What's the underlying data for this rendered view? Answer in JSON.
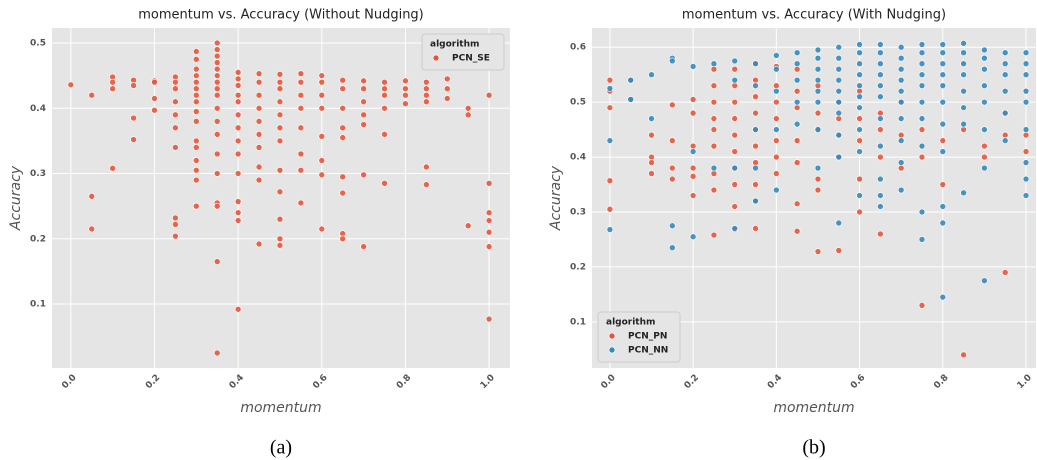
{
  "chart_data": [
    {
      "type": "scatter",
      "title": "momentum vs. Accuracy (Without Nudging)",
      "xlabel": "momentum",
      "ylabel": "Accuracy",
      "caption": "(a)",
      "xlim": [
        -0.045,
        1.05
      ],
      "ylim": [
        0.002,
        0.523
      ],
      "xticks": [
        {
          "value": 0,
          "label": "0.0"
        },
        0.2,
        0.4,
        0.6,
        0.8,
        {
          "value": 1,
          "label": "1.0"
        }
      ],
      "yticks": [
        0.1,
        0.2,
        0.3,
        0.4,
        0.5
      ],
      "grid": true,
      "legend_title": "algorithm",
      "legend_loc": "upper right",
      "series": [
        {
          "name": "PCN_SE",
          "color": "#e5553b",
          "x": [
            0,
            0.05,
            0.05,
            0.05,
            0.1,
            0.1,
            0.1,
            0.1,
            0.15,
            0.15,
            0.15,
            0.15,
            0.2,
            0.2,
            0.2,
            0.2,
            0.25,
            0.25,
            0.25,
            0.25,
            0.25,
            0.25,
            0.25,
            0.25,
            0.25,
            0.25,
            0.3,
            0.3,
            0.3,
            0.3,
            0.3,
            0.3,
            0.3,
            0.3,
            0.3,
            0.3,
            0.3,
            0.3,
            0.3,
            0.3,
            0.3,
            0.3,
            0.35,
            0.35,
            0.35,
            0.35,
            0.35,
            0.35,
            0.35,
            0.35,
            0.35,
            0.35,
            0.35,
            0.35,
            0.35,
            0.35,
            0.35,
            0.35,
            0.35,
            0.35,
            0.4,
            0.4,
            0.4,
            0.4,
            0.4,
            0.4,
            0.4,
            0.4,
            0.4,
            0.4,
            0.4,
            0.4,
            0.4,
            0.4,
            0.45,
            0.45,
            0.45,
            0.45,
            0.45,
            0.45,
            0.45,
            0.45,
            0.45,
            0.45,
            0.5,
            0.5,
            0.5,
            0.5,
            0.5,
            0.5,
            0.5,
            0.5,
            0.5,
            0.5,
            0.5,
            0.5,
            0.55,
            0.55,
            0.55,
            0.55,
            0.55,
            0.55,
            0.55,
            0.55,
            0.6,
            0.6,
            0.6,
            0.6,
            0.6,
            0.6,
            0.6,
            0.6,
            0.65,
            0.65,
            0.65,
            0.65,
            0.65,
            0.65,
            0.65,
            0.65,
            0.65,
            0.7,
            0.7,
            0.7,
            0.7,
            0.7,
            0.7,
            0.7,
            0.75,
            0.75,
            0.75,
            0.75,
            0.75,
            0.75,
            0.8,
            0.8,
            0.8,
            0.8,
            0.85,
            0.85,
            0.85,
            0.85,
            0.85,
            0.85,
            0.9,
            0.9,
            0.9,
            0.95,
            0.95,
            0.95,
            1,
            1,
            1,
            1,
            1,
            1,
            1
          ],
          "y": [
            0.436,
            0.42,
            0.265,
            0.215,
            0.448,
            0.44,
            0.43,
            0.308,
            0.443,
            0.435,
            0.385,
            0.352,
            0.442,
            0.44,
            0.415,
            0.397,
            0.448,
            0.44,
            0.43,
            0.41,
            0.39,
            0.37,
            0.34,
            0.232,
            0.222,
            0.204,
            0.487,
            0.475,
            0.46,
            0.45,
            0.44,
            0.43,
            0.42,
            0.41,
            0.395,
            0.38,
            0.35,
            0.34,
            0.32,
            0.305,
            0.29,
            0.25,
            0.5,
            0.49,
            0.48,
            0.47,
            0.46,
            0.45,
            0.44,
            0.43,
            0.42,
            0.4,
            0.38,
            0.36,
            0.33,
            0.3,
            0.255,
            0.25,
            0.165,
            0.025,
            0.455,
            0.445,
            0.435,
            0.42,
            0.41,
            0.39,
            0.37,
            0.35,
            0.33,
            0.3,
            0.257,
            0.24,
            0.228,
            0.092,
            0.453,
            0.44,
            0.42,
            0.4,
            0.38,
            0.36,
            0.34,
            0.31,
            0.29,
            0.192,
            0.452,
            0.44,
            0.43,
            0.41,
            0.39,
            0.37,
            0.35,
            0.305,
            0.272,
            0.23,
            0.2,
            0.19,
            0.453,
            0.44,
            0.42,
            0.4,
            0.37,
            0.33,
            0.305,
            0.255,
            0.45,
            0.44,
            0.42,
            0.4,
            0.357,
            0.32,
            0.298,
            0.215,
            0.443,
            0.43,
            0.4,
            0.37,
            0.355,
            0.295,
            0.27,
            0.208,
            0.2,
            0.442,
            0.43,
            0.41,
            0.39,
            0.375,
            0.298,
            0.188,
            0.44,
            0.43,
            0.42,
            0.4,
            0.36,
            0.285,
            0.442,
            0.43,
            0.42,
            0.407,
            0.44,
            0.43,
            0.42,
            0.41,
            0.31,
            0.283,
            0.445,
            0.43,
            0.415,
            0.4,
            0.39,
            0.22,
            0.42,
            0.285,
            0.24,
            0.228,
            0.21,
            0.188,
            0.077
          ]
        }
      ]
    },
    {
      "type": "scatter",
      "title": "momentum vs. Accuracy (With Nudging)",
      "xlabel": "momentum",
      "ylabel": "Accuracy",
      "caption": "(b)",
      "xlim": [
        -0.043,
        1.024
      ],
      "ylim": [
        0.016,
        0.635
      ],
      "xticks": [
        {
          "value": 0,
          "label": "0.0"
        },
        0.2,
        0.4,
        0.6,
        0.8,
        {
          "value": 1,
          "label": "1.0"
        }
      ],
      "yticks": [
        0.1,
        0.2,
        0.3,
        0.4,
        0.5,
        0.6
      ],
      "grid": true,
      "legend_title": "algorithm",
      "legend_loc": "lower left",
      "series": [
        {
          "name": "PCN_PN",
          "color": "#e5553b",
          "x": [
            0,
            0,
            0,
            0,
            0,
            0.05,
            0.05,
            0.1,
            0.1,
            0.1,
            0.1,
            0.15,
            0.15,
            0.15,
            0.15,
            0.2,
            0.2,
            0.2,
            0.2,
            0.2,
            0.2,
            0.25,
            0.25,
            0.25,
            0.25,
            0.25,
            0.25,
            0.25,
            0.25,
            0.25,
            0.3,
            0.3,
            0.3,
            0.3,
            0.3,
            0.3,
            0.3,
            0.3,
            0.3,
            0.3,
            0.35,
            0.35,
            0.35,
            0.35,
            0.35,
            0.35,
            0.35,
            0.35,
            0.35,
            0.35,
            0.4,
            0.4,
            0.4,
            0.4,
            0.4,
            0.4,
            0.4,
            0.45,
            0.45,
            0.45,
            0.45,
            0.45,
            0.45,
            0.45,
            0.5,
            0.5,
            0.5,
            0.5,
            0.5,
            0.5,
            0.55,
            0.55,
            0.55,
            0.55,
            0.55,
            0.6,
            0.6,
            0.6,
            0.6,
            0.6,
            0.65,
            0.65,
            0.65,
            0.65,
            0.7,
            0.7,
            0.7,
            0.75,
            0.75,
            0.75,
            0.8,
            0.8,
            0.85,
            0.85,
            0.9,
            0.9,
            0.95,
            0.95,
            0.95,
            1,
            1
          ],
          "y": [
            0.54,
            0.52,
            0.49,
            0.357,
            0.305,
            0.54,
            0.505,
            0.44,
            0.4,
            0.39,
            0.37,
            0.495,
            0.43,
            0.38,
            0.36,
            0.505,
            0.48,
            0.42,
            0.38,
            0.365,
            0.33,
            0.56,
            0.53,
            0.5,
            0.47,
            0.45,
            0.42,
            0.37,
            0.34,
            0.258,
            0.56,
            0.53,
            0.5,
            0.47,
            0.44,
            0.41,
            0.38,
            0.35,
            0.31,
            0.268,
            0.57,
            0.54,
            0.51,
            0.48,
            0.45,
            0.42,
            0.39,
            0.35,
            0.32,
            0.27,
            0.565,
            0.53,
            0.5,
            0.47,
            0.43,
            0.4,
            0.37,
            0.56,
            0.52,
            0.49,
            0.43,
            0.39,
            0.315,
            0.265,
            0.53,
            0.48,
            0.45,
            0.36,
            0.34,
            0.228,
            0.5,
            0.47,
            0.44,
            0.4,
            0.23,
            0.52,
            0.47,
            0.43,
            0.36,
            0.3,
            0.48,
            0.45,
            0.4,
            0.26,
            0.5,
            0.44,
            0.38,
            0.45,
            0.4,
            0.13,
            0.43,
            0.35,
            0.45,
            0.04,
            0.42,
            0.4,
            0.48,
            0.44,
            0.19,
            0.44,
            0.41
          ]
        },
        {
          "name": "PCN_NN",
          "color": "#348abd",
          "x": [
            0,
            0,
            0,
            0.05,
            0.05,
            0.1,
            0.1,
            0.15,
            0.15,
            0.15,
            0.15,
            0.2,
            0.2,
            0.2,
            0.25,
            0.25,
            0.3,
            0.3,
            0.3,
            0.3,
            0.35,
            0.35,
            0.35,
            0.35,
            0.35,
            0.4,
            0.4,
            0.4,
            0.4,
            0.4,
            0.45,
            0.45,
            0.45,
            0.45,
            0.45,
            0.5,
            0.5,
            0.5,
            0.5,
            0.5,
            0.5,
            0.5,
            0.5,
            0.55,
            0.55,
            0.55,
            0.55,
            0.55,
            0.55,
            0.55,
            0.55,
            0.55,
            0.55,
            0.6,
            0.6,
            0.6,
            0.6,
            0.6,
            0.6,
            0.6,
            0.6,
            0.6,
            0.6,
            0.65,
            0.65,
            0.65,
            0.65,
            0.65,
            0.65,
            0.65,
            0.65,
            0.65,
            0.65,
            0.65,
            0.7,
            0.7,
            0.7,
            0.7,
            0.7,
            0.7,
            0.7,
            0.7,
            0.7,
            0.7,
            0.75,
            0.75,
            0.75,
            0.75,
            0.75,
            0.75,
            0.75,
            0.75,
            0.75,
            0.75,
            0.8,
            0.8,
            0.8,
            0.8,
            0.8,
            0.8,
            0.8,
            0.8,
            0.8,
            0.8,
            0.8,
            0.85,
            0.85,
            0.85,
            0.85,
            0.85,
            0.85,
            0.85,
            0.85,
            0.9,
            0.9,
            0.9,
            0.9,
            0.9,
            0.9,
            0.9,
            0.9,
            0.95,
            0.95,
            0.95,
            0.95,
            0.95,
            0.95,
            1,
            1,
            1,
            1,
            1,
            1,
            1,
            1,
            1
          ],
          "y": [
            0.525,
            0.43,
            0.268,
            0.54,
            0.505,
            0.55,
            0.47,
            0.58,
            0.575,
            0.275,
            0.235,
            0.565,
            0.41,
            0.255,
            0.57,
            0.38,
            0.575,
            0.54,
            0.38,
            0.27,
            0.57,
            0.53,
            0.45,
            0.38,
            0.32,
            0.585,
            0.56,
            0.52,
            0.45,
            0.34,
            0.59,
            0.57,
            0.54,
            0.5,
            0.46,
            0.595,
            0.58,
            0.56,
            0.54,
            0.52,
            0.5,
            0.45,
            0.38,
            0.6,
            0.58,
            0.56,
            0.54,
            0.52,
            0.5,
            0.48,
            0.44,
            0.4,
            0.28,
            0.605,
            0.59,
            0.57,
            0.55,
            0.53,
            0.51,
            0.49,
            0.45,
            0.41,
            0.33,
            0.605,
            0.59,
            0.57,
            0.55,
            0.53,
            0.51,
            0.47,
            0.42,
            0.36,
            0.33,
            0.31,
            0.6,
            0.58,
            0.56,
            0.54,
            0.52,
            0.5,
            0.47,
            0.43,
            0.39,
            0.34,
            0.605,
            0.59,
            0.57,
            0.55,
            0.53,
            0.5,
            0.47,
            0.42,
            0.3,
            0.25,
            0.605,
            0.59,
            0.57,
            0.55,
            0.53,
            0.5,
            0.46,
            0.41,
            0.31,
            0.28,
            0.145,
            0.607,
            0.59,
            0.57,
            0.55,
            0.52,
            0.49,
            0.46,
            0.335,
            0.595,
            0.58,
            0.56,
            0.53,
            0.5,
            0.45,
            0.38,
            0.175,
            0.59,
            0.57,
            0.55,
            0.52,
            0.48,
            0.43,
            0.59,
            0.57,
            0.55,
            0.52,
            0.5,
            0.45,
            0.39,
            0.36,
            0.33
          ]
        }
      ]
    }
  ]
}
